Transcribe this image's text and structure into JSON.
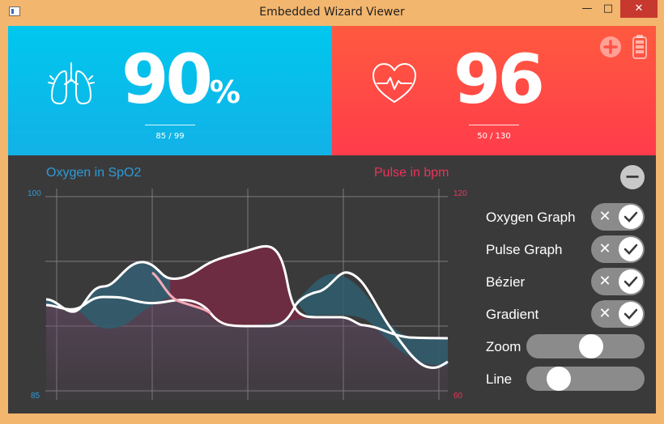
{
  "window": {
    "title": "Embedded Wizard Viewer",
    "min_glyph": "—",
    "max_glyph": "□",
    "close_glyph": "✕"
  },
  "oxygen": {
    "value": "90",
    "unit": "%",
    "range": "85 / 99",
    "color": "#00c7ee",
    "icon": "lungs-icon"
  },
  "pulse": {
    "value": "96",
    "range": "50 / 130",
    "color": "#ff4b44",
    "icon": "heart-pulse-icon"
  },
  "header_icons": [
    "plus-circle-icon",
    "battery-icon"
  ],
  "graph": {
    "oxygen_label": "Oxygen in SpO2",
    "pulse_label": "Pulse in bpm",
    "oxygen_axis_max": "100",
    "oxygen_axis_min": "85",
    "pulse_axis_max": "120",
    "pulse_axis_min": "60",
    "oxygen_color": "#2e9bd6",
    "pulse_color": "#e8345a"
  },
  "controls": {
    "collapse_glyph": "−",
    "toggles": [
      {
        "label": "Oxygen Graph",
        "on": true
      },
      {
        "label": "Pulse Graph",
        "on": true
      },
      {
        "label": "Bézier",
        "on": true
      },
      {
        "label": "Gradient",
        "on": true
      }
    ],
    "sliders": [
      {
        "label": "Zoom",
        "level": 0.5
      },
      {
        "label": "Line",
        "level": 0.25
      }
    ]
  }
}
